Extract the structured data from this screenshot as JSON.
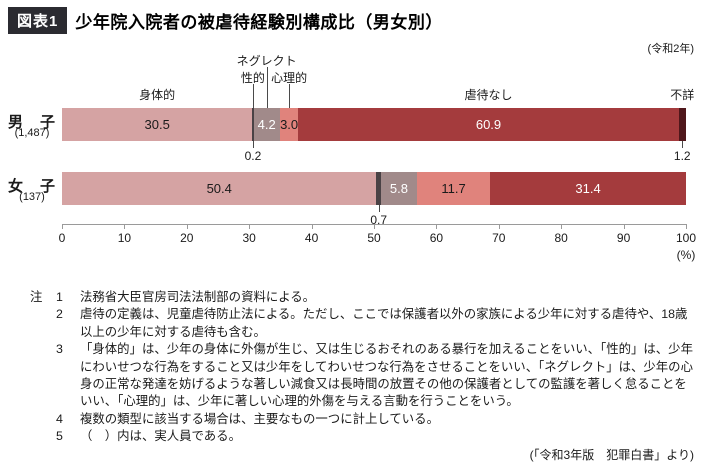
{
  "header": {
    "badge": "図表1",
    "title": "少年院入院者の被虐待経験別構成比（男女別）"
  },
  "chart_data": {
    "type": "bar",
    "stacked": true,
    "orientation": "horizontal",
    "title": "少年院入院者の被虐待経験別構成比（男女別）",
    "year_note": "(令和2年)",
    "unit_label": "(%)",
    "xlim": [
      0,
      100
    ],
    "x_ticks": [
      0,
      10,
      20,
      30,
      40,
      50,
      60,
      70,
      80,
      90,
      100
    ],
    "categories": [
      "身体的",
      "性的",
      "ネグレクト",
      "心理的",
      "虐待なし",
      "不詳"
    ],
    "colors": [
      "#d5a3a3",
      "#4a4245",
      "#a18a8a",
      "#e0837c",
      "#a43b3d",
      "#4f171b"
    ],
    "value_text_colors": [
      "#1a1a1a",
      "#ffffff",
      "#ffffff",
      "#1a1a1a",
      "#ffffff",
      "#ffffff"
    ],
    "label_tiers": [
      2,
      1,
      0,
      1,
      2,
      2
    ],
    "leader_lines": [
      false,
      true,
      true,
      true,
      false,
      false
    ],
    "callout_threshold": 2,
    "rows": [
      {
        "label": "男　子",
        "count": "(1,487)",
        "values": [
          30.5,
          0.2,
          4.2,
          3.0,
          60.9,
          1.2
        ]
      },
      {
        "label": "女　子",
        "count": "(137)",
        "values": [
          50.4,
          0.7,
          5.8,
          11.7,
          31.4,
          0
        ]
      }
    ]
  },
  "notes": {
    "marker": "注",
    "items": [
      {
        "num": "1",
        "text": "法務省大臣官房司法法制部の資料による。"
      },
      {
        "num": "2",
        "text": "虐待の定義は、児童虐待防止法による。ただし、ここでは保護者以外の家族による少年に対する虐待や、18歳以上の少年に対する虐待も含む。"
      },
      {
        "num": "3",
        "text": "「身体的」は、少年の身体に外傷が生じ、又は生じるおそれのある暴行を加えることをいい、「性的」は、少年にわいせつな行為をすること又は少年をしてわいせつな行為をさせることをいい、「ネグレクト」は、少年の心身の正常な発達を妨げるような著しい減食又は長時間の放置その他の保護者としての監護を著しく怠ることをいい、「心理的」は、少年に著しい心理的外傷を与える言動を行うことをいう。"
      },
      {
        "num": "4",
        "text": "複数の類型に該当する場合は、主要なもの一つに計上している。"
      },
      {
        "num": "5",
        "text": "（　）内は、実人員である。"
      }
    ]
  },
  "source": "(「令和3年版　犯罪白書」より)"
}
